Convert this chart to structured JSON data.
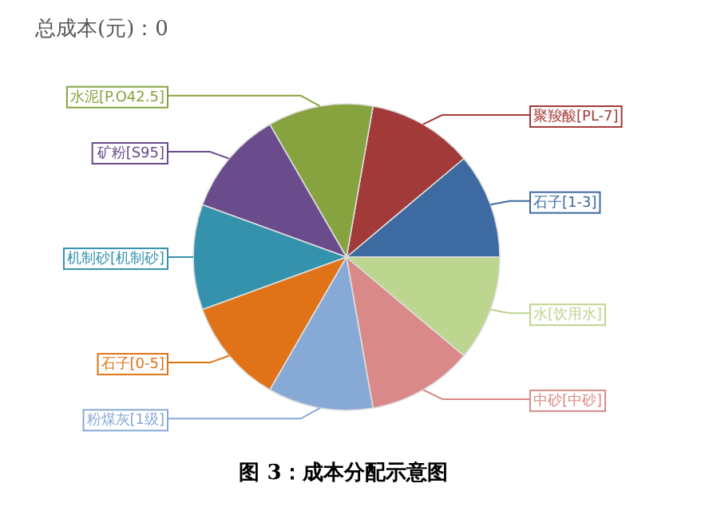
{
  "chart_data": {
    "type": "pie",
    "title": "总成本(元)：0",
    "categories": [
      "石子[1-3]",
      "聚羧酸[PL-7]",
      "水泥[P.O42.5]",
      "矿粉[S95]",
      "机制砂[机制砂]",
      "石子[0-5]",
      "粉煤灰[1级]",
      "中砂[中砂]",
      "水[饮用水]"
    ],
    "values": [
      11.12,
      11.11,
      11.11,
      11.11,
      11.11,
      11.11,
      11.11,
      11.11,
      11.11
    ],
    "colors": [
      "#3d6aa0",
      "#a33a3a",
      "#86a33f",
      "#6a4c8c",
      "#3592ad",
      "#e07318",
      "#87a9d6",
      "#d98a88",
      "#bcd58f"
    ],
    "annotations": [
      "图 3：成本分配示意图"
    ]
  }
}
